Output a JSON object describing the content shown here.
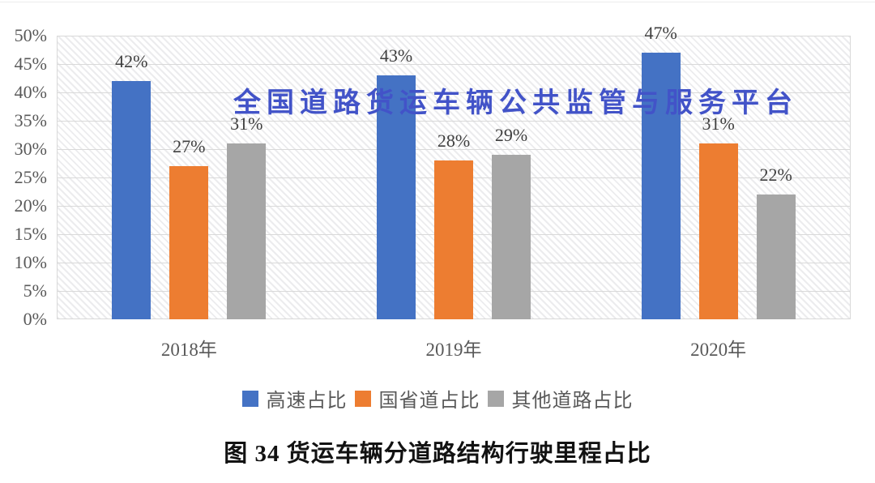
{
  "watermark": {
    "text": "全国道路货运车辆公共监管与服务平台",
    "color": "#4253C8"
  },
  "chart_data": {
    "type": "bar",
    "title": "图 34 货运车辆分道路结构行驶里程占比",
    "categories": [
      "2018年",
      "2019年",
      "2020年"
    ],
    "series": [
      {
        "name": "高速占比",
        "color": "#4472C4",
        "values": [
          42,
          43,
          47
        ]
      },
      {
        "name": "国省道占比",
        "color": "#ED7D31",
        "values": [
          27,
          28,
          31
        ]
      },
      {
        "name": "其他道路占比",
        "color": "#A6A6A6",
        "values": [
          31,
          29,
          22
        ]
      }
    ],
    "value_suffix": "%",
    "ylim": [
      0,
      50
    ],
    "ytick_labels": [
      "0%",
      "5%",
      "10%",
      "15%",
      "20%",
      "25%",
      "30%",
      "35%",
      "40%",
      "45%",
      "50%"
    ],
    "grid": true,
    "legend_position": "bottom",
    "plot_background": "diagonal-hatch",
    "gridline_color": "#D9D9D9",
    "tick_text_color": "#595959",
    "value_label_color": "#3F3F3F"
  }
}
